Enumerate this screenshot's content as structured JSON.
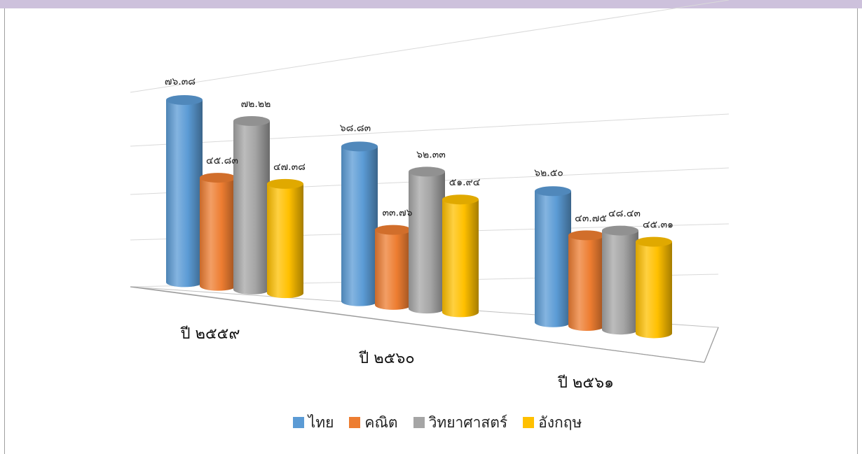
{
  "chart_data": {
    "type": "bar",
    "categories": [
      "ปี ๒๕๕๙",
      "ปี ๒๕๖๐",
      "ปี ๒๕๖๑"
    ],
    "series": [
      {
        "name": "ไทย",
        "color": "#5b9bd5",
        "values": [
          76.38,
          68.83,
          62.5
        ],
        "labels": [
          "๗๖.๓๘",
          "๖๘.๘๓",
          "๖๒.๕๐"
        ]
      },
      {
        "name": "คณิต",
        "color": "#ed7d31",
        "values": [
          45.83,
          33.76,
          43.75
        ],
        "labels": [
          "๔๕.๘๓",
          "๓๓.๗๖",
          "๔๓.๗๕"
        ]
      },
      {
        "name": "วิทยาศาสตร์",
        "color": "#a5a5a5",
        "values": [
          72.22,
          62.33,
          48.43
        ],
        "labels": [
          "๗๒.๒๒",
          "๖๒.๓๓",
          "๔๘.๔๓"
        ]
      },
      {
        "name": "อังกฤษ",
        "color": "#ffc000",
        "values": [
          47.38,
          51.94,
          45.31
        ],
        "labels": [
          "๔๗.๓๘",
          "๕๑.๙๔",
          "๔๕.๓๑"
        ]
      }
    ],
    "ylim": [
      0,
      100
    ],
    "grid": true,
    "legend_position": "bottom"
  }
}
